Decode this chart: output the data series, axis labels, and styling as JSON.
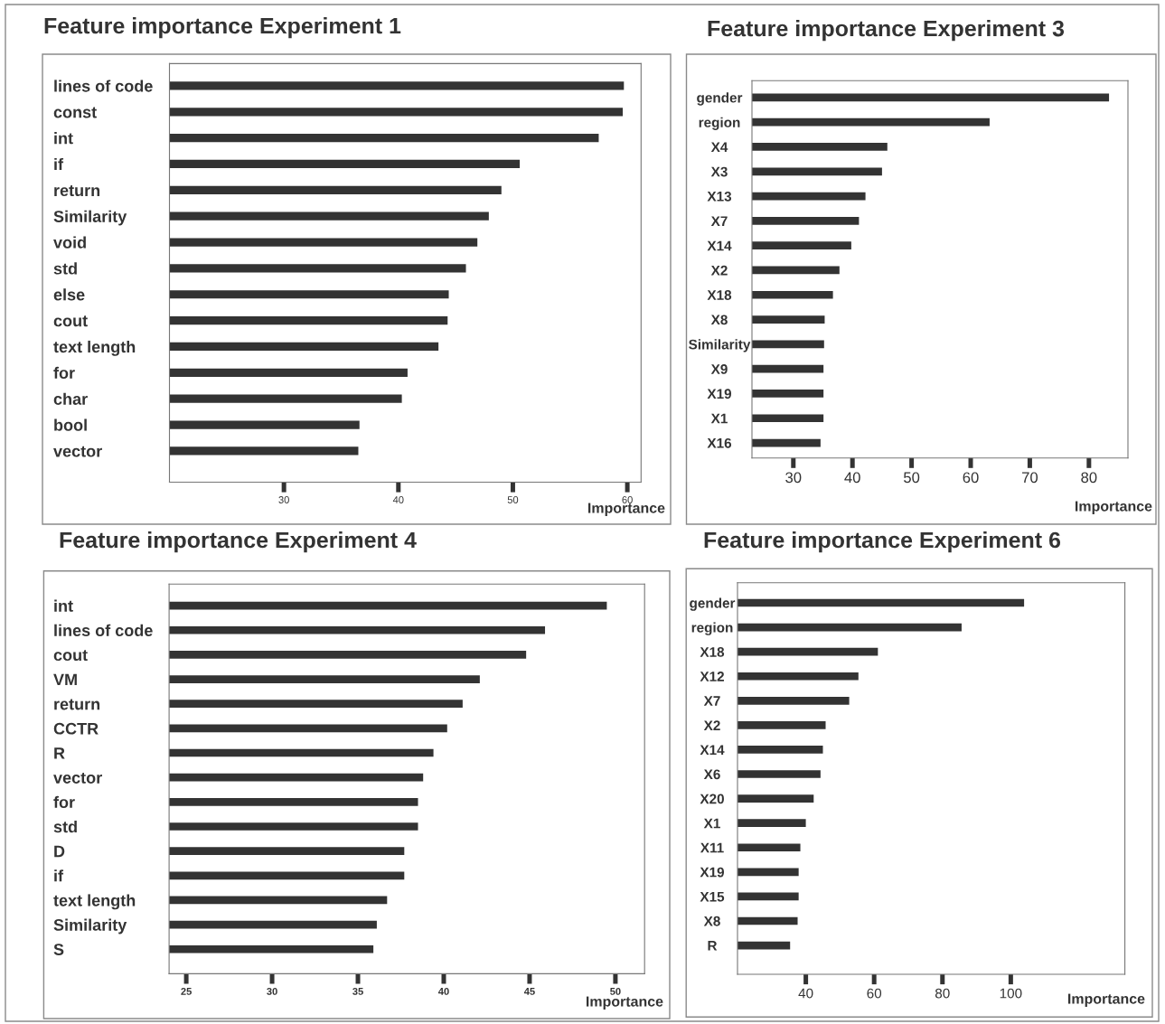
{
  "chart_data": [
    {
      "type": "bar",
      "orientation": "horizontal",
      "title": "Feature importance Experiment 1",
      "xlabel": "Importance",
      "categories": [
        "lines of code",
        "const",
        "int",
        "if",
        "return",
        "Similarity",
        "void",
        "std",
        "else",
        "cout",
        "text length",
        "for",
        "char",
        "bool",
        "vector"
      ],
      "values": [
        59.7,
        59.6,
        57.5,
        50.6,
        49.0,
        47.9,
        46.9,
        45.9,
        44.4,
        44.3,
        43.5,
        40.8,
        40.3,
        36.6,
        36.5
      ],
      "color": "#333333",
      "xlim": [
        20,
        61.2
      ],
      "xticks": [
        30,
        40,
        50,
        60
      ]
    },
    {
      "type": "bar",
      "orientation": "horizontal",
      "title": "Feature importance Experiment 3",
      "xlabel": "Importance",
      "categories": [
        "gender",
        "region",
        "X4",
        "X3",
        "X13",
        "X7",
        "X14",
        "X2",
        "X18",
        "X8",
        "Similarity",
        "X9",
        "X19",
        "X1",
        "X16"
      ],
      "values": [
        83.4,
        63.2,
        45.9,
        45.0,
        42.2,
        41.1,
        39.8,
        37.8,
        36.7,
        35.3,
        35.2,
        35.1,
        35.1,
        35.1,
        34.6
      ],
      "color": "#333333",
      "xlim": [
        23,
        86.6
      ],
      "xticks": [
        30,
        40,
        50,
        60,
        70,
        80
      ]
    },
    {
      "type": "bar",
      "orientation": "horizontal",
      "title": "Feature importance Experiment 4",
      "xlabel": "Importance",
      "categories": [
        "int",
        "lines of code",
        "cout",
        "VM",
        "return",
        "CCTR",
        "R",
        "vector",
        "for",
        "std",
        "D",
        "if",
        "text length",
        "Similarity",
        "S"
      ],
      "values": [
        49.5,
        45.9,
        44.8,
        42.1,
        41.1,
        40.2,
        39.4,
        38.8,
        38.5,
        38.5,
        37.7,
        37.7,
        36.7,
        36.1,
        35.9
      ],
      "color": "#333333",
      "xlim": [
        24,
        51.7
      ],
      "xticks": [
        25,
        30,
        35,
        40,
        45,
        50
      ]
    },
    {
      "type": "bar",
      "orientation": "horizontal",
      "title": "Feature importance Experiment 6",
      "xlabel": "Importance",
      "categories": [
        "gender",
        "region",
        "X18",
        "X12",
        "X7",
        "X2",
        "X14",
        "X6",
        "X20",
        "X1",
        "X11",
        "X19",
        "X15",
        "X8",
        "R"
      ],
      "values": [
        103.9,
        85.6,
        61.1,
        55.4,
        52.7,
        45.8,
        45.0,
        44.3,
        42.3,
        40.0,
        38.4,
        37.9,
        37.9,
        37.6,
        35.4
      ],
      "color": "#333333",
      "xlim": [
        20,
        133.4
      ],
      "xticks": [
        40,
        60,
        80,
        100
      ]
    }
  ]
}
